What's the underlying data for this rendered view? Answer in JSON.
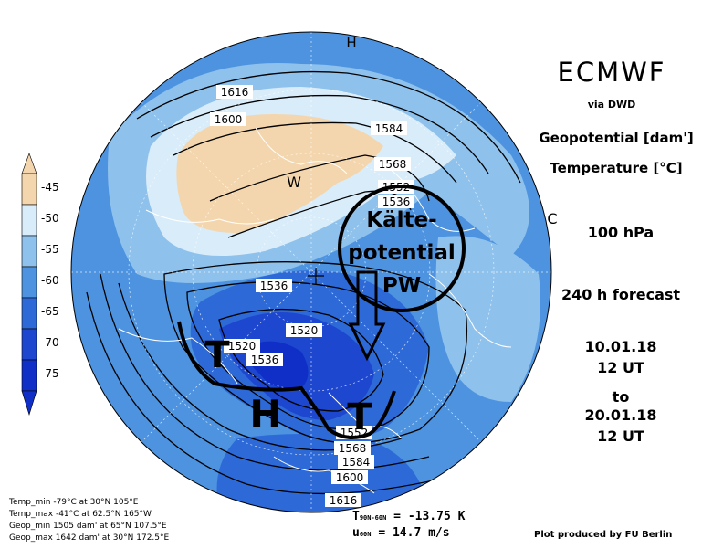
{
  "header": {
    "brand": "ECMWF",
    "via": "via DWD",
    "variable_1": "Geopotential [dam']",
    "variable_2": "Temperature [°C]",
    "level": "100 hPa",
    "forecast": "240 h forecast",
    "init_date": "10.01.18",
    "init_time": "12 UT",
    "to": "to",
    "valid_date": "20.01.18",
    "valid_time": "12 UT"
  },
  "legend": {
    "labels": [
      "-45",
      "-50",
      "-55",
      "-60",
      "-65",
      "-70",
      "-75"
    ],
    "colors": [
      "#f3d6ad",
      "#d9ecf9",
      "#8ec1ec",
      "#4d93e0",
      "#2d6ad8",
      "#1d47cf",
      "#0f2fc7"
    ]
  },
  "stats": {
    "temp_min": "Temp_min -79°C at 30°N 105°E",
    "temp_max": "Temp_max -41°C at 62.5°N 165°W",
    "geop_min": "Geop_min 1505 dam' at 65°N 107.5°E",
    "geop_max": "Geop_max 1642 dam' at 30°N 172.5°E"
  },
  "indices": {
    "t_label": "T",
    "t_sub": "90N-60N",
    "t_value": "= -13.75 K",
    "u_label": "u",
    "u_sub": "60N",
    "u_value": "= 14.7 m/s"
  },
  "footer": "Plot produced by FU Berlin",
  "map": {
    "contour_labels": [
      "1616",
      "1600",
      "1584",
      "1568",
      "1552",
      "1536",
      "1536",
      "1520",
      "1520",
      "1536",
      "1552",
      "1568",
      "1584",
      "1600",
      "1616"
    ],
    "warm_marker": "W",
    "edge_marks": [
      "H",
      "C"
    ],
    "annotations": {
      "low_1": "T",
      "high": "H",
      "low_2": "T",
      "cold_pool": "Kälte-\npotential\nPW"
    }
  },
  "colors": {
    "cold_core": "#0f2fc7",
    "very_cold": "#1d47cf",
    "cold": "#2d6ad8",
    "mid": "#4d93e0",
    "light": "#8ec1ec",
    "pale": "#d9ecf9",
    "warm": "#f3d6ad"
  }
}
